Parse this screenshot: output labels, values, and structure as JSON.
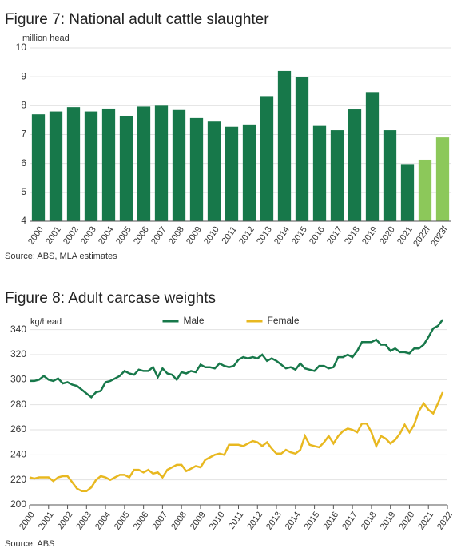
{
  "chart_data": [
    {
      "type": "bar",
      "title": "Figure 7: National adult cattle slaughter",
      "y_label": "million head",
      "note": "Source: ABS, MLA estimates",
      "categories": [
        "2000",
        "2001",
        "2002",
        "2003",
        "2004",
        "2005",
        "2006",
        "2007",
        "2008",
        "2009",
        "2010",
        "2011",
        "2012",
        "2013",
        "2014",
        "2015",
        "2016",
        "2017",
        "2018",
        "2019",
        "2020",
        "2021",
        "2022f",
        "2023f"
      ],
      "values": [
        7.7,
        7.8,
        7.95,
        7.8,
        7.9,
        7.65,
        7.97,
        8.0,
        7.85,
        7.57,
        7.45,
        7.27,
        7.35,
        8.33,
        9.2,
        9.0,
        7.3,
        7.15,
        7.87,
        8.47,
        7.15,
        5.98,
        6.13,
        6.9
      ],
      "colors": [
        "#17784a",
        "#17784a",
        "#17784a",
        "#17784a",
        "#17784a",
        "#17784a",
        "#17784a",
        "#17784a",
        "#17784a",
        "#17784a",
        "#17784a",
        "#17784a",
        "#17784a",
        "#17784a",
        "#17784a",
        "#17784a",
        "#17784a",
        "#17784a",
        "#17784a",
        "#17784a",
        "#17784a",
        "#17784a",
        "#8cc85a",
        "#8cc85a"
      ],
      "ylim": [
        4,
        10
      ],
      "yticks": [
        4,
        5,
        6,
        7,
        8,
        9,
        10
      ],
      "grid": true
    },
    {
      "type": "line",
      "title": "Figure 8: Adult carcase weights",
      "y_label": "kg/head",
      "note": "Source: ABS",
      "legend": "top",
      "x": [
        2000,
        2000.25,
        2000.5,
        2000.75,
        2001,
        2001.25,
        2001.5,
        2001.75,
        2002,
        2002.25,
        2002.5,
        2002.75,
        2003,
        2003.25,
        2003.5,
        2003.75,
        2004,
        2004.25,
        2004.5,
        2004.75,
        2005,
        2005.25,
        2005.5,
        2005.75,
        2006,
        2006.25,
        2006.5,
        2006.75,
        2007,
        2007.25,
        2007.5,
        2007.75,
        2008,
        2008.25,
        2008.5,
        2008.75,
        2009,
        2009.25,
        2009.5,
        2009.75,
        2010,
        2010.25,
        2010.5,
        2010.75,
        2011,
        2011.25,
        2011.5,
        2011.75,
        2012,
        2012.25,
        2012.5,
        2012.75,
        2013,
        2013.25,
        2013.5,
        2013.75,
        2014,
        2014.25,
        2014.5,
        2014.75,
        2015,
        2015.25,
        2015.5,
        2015.75,
        2016,
        2016.25,
        2016.5,
        2016.75,
        2017,
        2017.25,
        2017.5,
        2017.75,
        2018,
        2018.25,
        2018.5,
        2018.75,
        2019,
        2019.25,
        2019.5,
        2019.75,
        2020,
        2020.25,
        2020.5,
        2020.75,
        2021,
        2021.25,
        2021.5,
        2021.75
      ],
      "series": [
        {
          "name": "Male",
          "color": "#17784a",
          "values": [
            299,
            299,
            300,
            303,
            300,
            299,
            301,
            297,
            298,
            296,
            295,
            292,
            289,
            286,
            290,
            291,
            298,
            299,
            301,
            303,
            307,
            305,
            304,
            308,
            307,
            307,
            310,
            302,
            309,
            305,
            304,
            300,
            306,
            305,
            307,
            306,
            312,
            310,
            310,
            309,
            313,
            311,
            310,
            311,
            316,
            318,
            317,
            318,
            317,
            320,
            315,
            317,
            315,
            312,
            309,
            310,
            308,
            313,
            309,
            308,
            307,
            311,
            311,
            309,
            310,
            318,
            318,
            320,
            318,
            323,
            330,
            330,
            330,
            332,
            328,
            328,
            323,
            325,
            322,
            322,
            321,
            325,
            325,
            328,
            334,
            341,
            343,
            348
          ]
        },
        {
          "name": "Female",
          "color": "#e8b820",
          "values": [
            222,
            221,
            222,
            222,
            222,
            219,
            222,
            223,
            223,
            218,
            213,
            211,
            211,
            214,
            220,
            223,
            222,
            220,
            222,
            224,
            224,
            222,
            228,
            228,
            226,
            228,
            225,
            226,
            222,
            228,
            230,
            232,
            232,
            227,
            229,
            231,
            230,
            236,
            238,
            240,
            241,
            240,
            248,
            248,
            248,
            247,
            249,
            251,
            250,
            247,
            250,
            245,
            241,
            241,
            244,
            242,
            241,
            244,
            255,
            248,
            247,
            246,
            250,
            255,
            249,
            255,
            259,
            261,
            260,
            258,
            265,
            265,
            258,
            247,
            255,
            253,
            249,
            252,
            257,
            264,
            258,
            264,
            275,
            281,
            276,
            273,
            281,
            290
          ]
        }
      ],
      "xlim": [
        2000,
        2022
      ],
      "xticks": [
        2000,
        2001,
        2002,
        2003,
        2004,
        2005,
        2006,
        2007,
        2008,
        2009,
        2010,
        2011,
        2012,
        2013,
        2014,
        2015,
        2016,
        2017,
        2018,
        2019,
        2020,
        2021,
        2022
      ],
      "ylim": [
        200,
        350
      ],
      "yticks": [
        200,
        220,
        240,
        260,
        280,
        300,
        320,
        340
      ],
      "grid": true
    }
  ]
}
